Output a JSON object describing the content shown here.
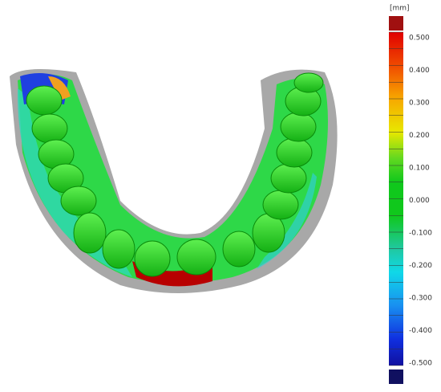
{
  "legend": {
    "unit": "[mm]",
    "labels": [
      "0.500",
      "0.400",
      "0.300",
      "0.200",
      "0.100",
      "0.000",
      "-0.100",
      "-0.200",
      "-0.300",
      "-0.400",
      "-0.500"
    ]
  }
}
